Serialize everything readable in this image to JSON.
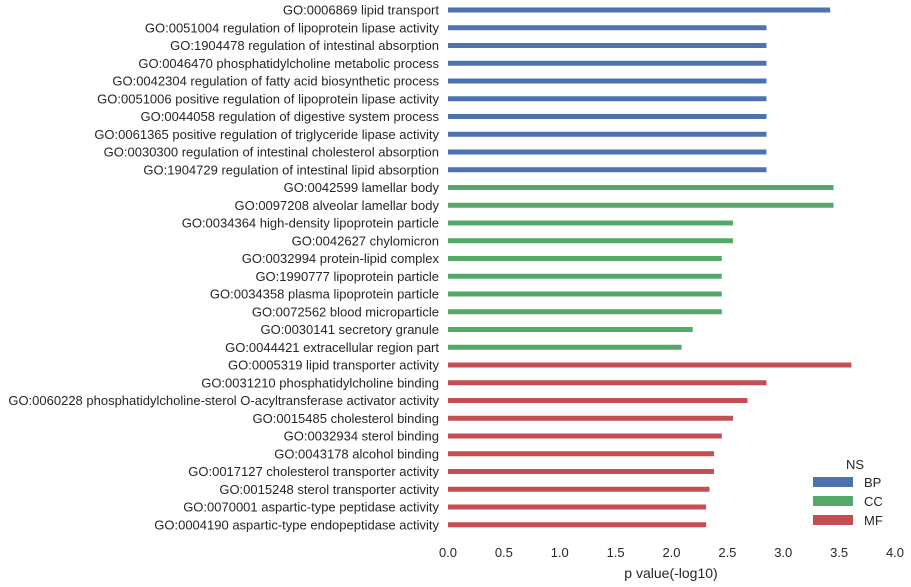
{
  "chart_data": {
    "type": "bar",
    "orientation": "horizontal",
    "xlabel": "p value(-log10)",
    "xlim": [
      0.0,
      4.0
    ],
    "xticks": [
      "0.0",
      "0.5",
      "1.0",
      "1.5",
      "2.0",
      "2.5",
      "3.0",
      "3.5",
      "4.0"
    ],
    "grid": false,
    "legend": {
      "title": "NS",
      "placement": "bottom-right",
      "entries": [
        {
          "name": "BP",
          "color": "#4c72b0"
        },
        {
          "name": "CC",
          "color": "#55a868"
        },
        {
          "name": "MF",
          "color": "#c44e52"
        }
      ]
    },
    "categories": [
      {
        "label": "GO:0006869 lipid transport",
        "value": 3.42,
        "ns": "BP"
      },
      {
        "label": "GO:0051004 regulation of lipoprotein lipase activity",
        "value": 2.85,
        "ns": "BP"
      },
      {
        "label": "GO:1904478 regulation of intestinal absorption",
        "value": 2.85,
        "ns": "BP"
      },
      {
        "label": "GO:0046470 phosphatidylcholine metabolic process",
        "value": 2.85,
        "ns": "BP"
      },
      {
        "label": "GO:0042304 regulation of fatty acid biosynthetic process",
        "value": 2.85,
        "ns": "BP"
      },
      {
        "label": "GO:0051006 positive regulation of lipoprotein lipase activity",
        "value": 2.85,
        "ns": "BP"
      },
      {
        "label": "GO:0044058 regulation of digestive system process",
        "value": 2.85,
        "ns": "BP"
      },
      {
        "label": "GO:0061365 positive regulation of triglyceride lipase activity",
        "value": 2.85,
        "ns": "BP"
      },
      {
        "label": "GO:0030300 regulation of intestinal cholesterol absorption",
        "value": 2.85,
        "ns": "BP"
      },
      {
        "label": "GO:1904729 regulation of intestinal lipid absorption",
        "value": 2.85,
        "ns": "BP"
      },
      {
        "label": "GO:0042599 lamellar body",
        "value": 3.45,
        "ns": "CC"
      },
      {
        "label": "GO:0097208 alveolar lamellar body",
        "value": 3.45,
        "ns": "CC"
      },
      {
        "label": "GO:0034364 high-density lipoprotein particle",
        "value": 2.55,
        "ns": "CC"
      },
      {
        "label": "GO:0042627 chylomicron",
        "value": 2.55,
        "ns": "CC"
      },
      {
        "label": "GO:0032994 protein-lipid complex",
        "value": 2.45,
        "ns": "CC"
      },
      {
        "label": "GO:1990777 lipoprotein particle",
        "value": 2.45,
        "ns": "CC"
      },
      {
        "label": "GO:0034358 plasma lipoprotein particle",
        "value": 2.45,
        "ns": "CC"
      },
      {
        "label": "GO:0072562 blood microparticle",
        "value": 2.45,
        "ns": "CC"
      },
      {
        "label": "GO:0030141 secretory granule",
        "value": 2.19,
        "ns": "CC"
      },
      {
        "label": "GO:0044421 extracellular region part",
        "value": 2.09,
        "ns": "CC"
      },
      {
        "label": "GO:0005319 lipid transporter activity",
        "value": 3.61,
        "ns": "MF"
      },
      {
        "label": "GO:0031210 phosphatidylcholine binding",
        "value": 2.85,
        "ns": "MF"
      },
      {
        "label": "GO:0060228 phosphatidylcholine-sterol O-acyltransferase activator activity",
        "value": 2.68,
        "ns": "MF"
      },
      {
        "label": "GO:0015485 cholesterol binding",
        "value": 2.55,
        "ns": "MF"
      },
      {
        "label": "GO:0032934 sterol binding",
        "value": 2.45,
        "ns": "MF"
      },
      {
        "label": "GO:0043178 alcohol binding",
        "value": 2.38,
        "ns": "MF"
      },
      {
        "label": "GO:0017127 cholesterol transporter activity",
        "value": 2.38,
        "ns": "MF"
      },
      {
        "label": "GO:0015248 sterol transporter activity",
        "value": 2.34,
        "ns": "MF"
      },
      {
        "label": "GO:0070001 aspartic-type peptidase activity",
        "value": 2.31,
        "ns": "MF"
      },
      {
        "label": "GO:0004190 aspartic-type endopeptidase activity",
        "value": 2.31,
        "ns": "MF"
      }
    ]
  }
}
